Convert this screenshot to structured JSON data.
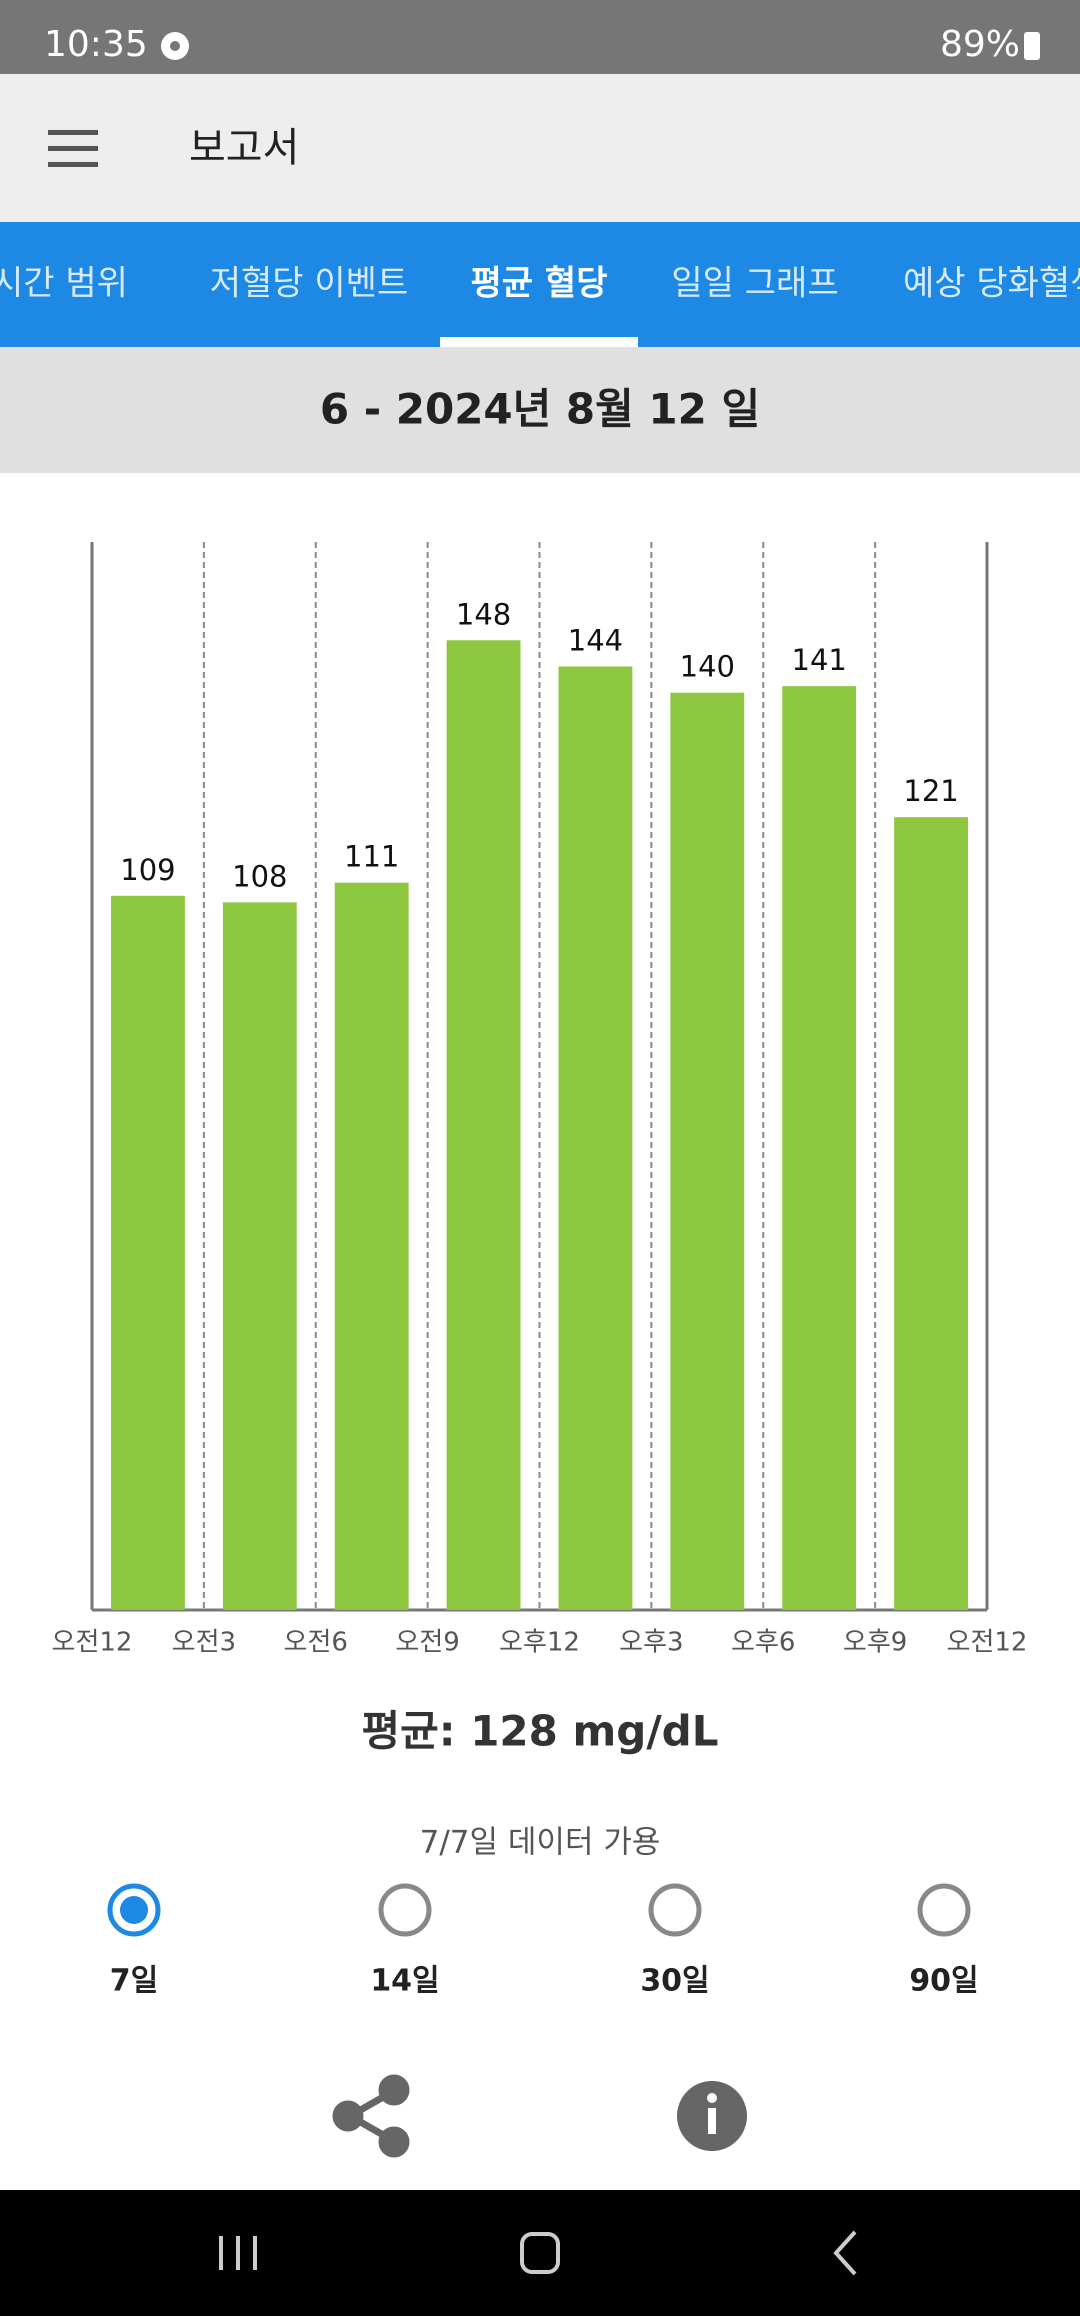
{
  "status_bar": {
    "time": "10:35",
    "battery": "89%"
  },
  "app_bar": {
    "title": "보고서"
  },
  "tabs": [
    "시간 범위",
    "저혈당 이벤트",
    "평균 혈당",
    "일일 그래프",
    "예상 당화혈색"
  ],
  "date_header": "6 - 2024년 8월 12 일",
  "chart_data": {
    "type": "bar",
    "categories": [
      null,
      null,
      null,
      null,
      null,
      null,
      null,
      null
    ],
    "values": [
      109,
      108,
      111,
      148,
      144,
      140,
      141,
      121
    ],
    "color": "#8dc63f",
    "ylim": [
      0,
      163
    ],
    "xtick_labels": [
      "오전12",
      "오전3",
      "오전6",
      "오전9",
      "오후12",
      "오후3",
      "오후6",
      "오후9",
      "오전12"
    ]
  },
  "average": "평균: 128 mg/dL",
  "availability": "7/7일 데이터 가용",
  "ranges": [
    "7일",
    "14일",
    "30일",
    "90일"
  ]
}
